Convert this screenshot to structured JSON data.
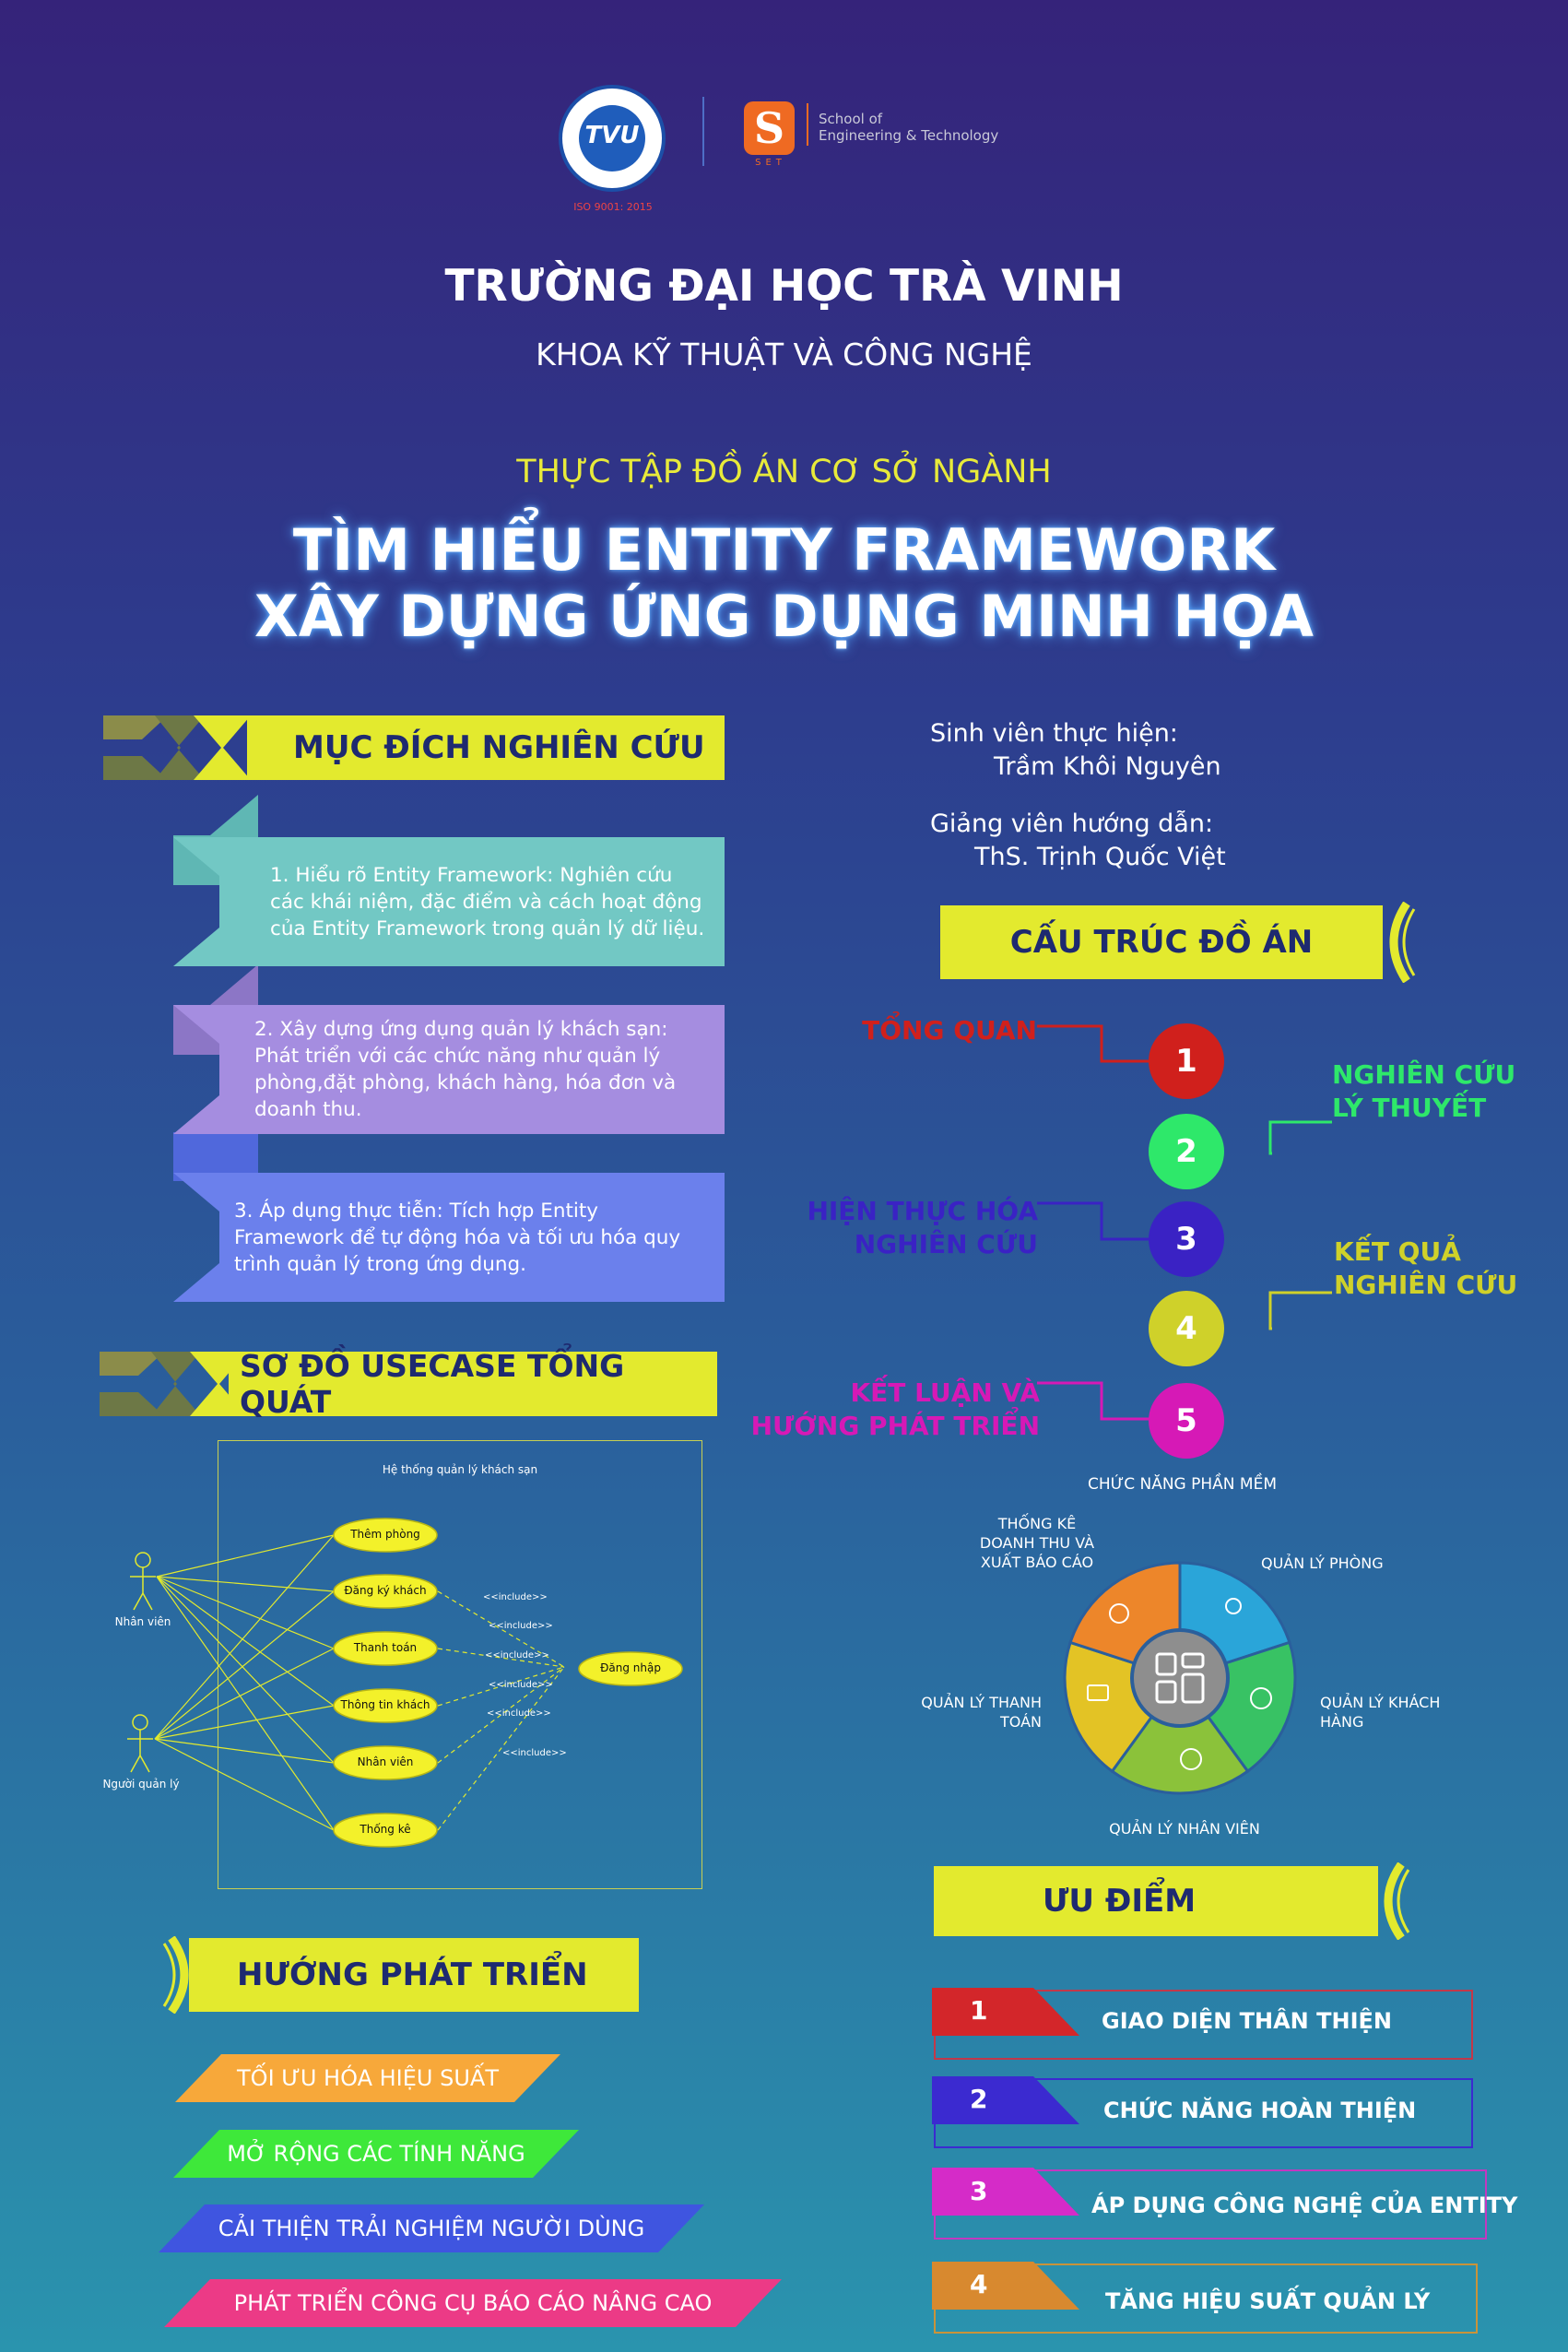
{
  "header": {
    "logo_tvu": "TVU",
    "iso": "ISO 9001: 2015",
    "set_logo": "S",
    "set_letters": "SET",
    "school_line1": "School of",
    "school_line2": "Engineering & Technology",
    "university": "TRƯỜNG ĐẠI HỌC TRÀ VINH",
    "faculty": "KHOA KỸ THUẬT VÀ CÔNG NGHỆ",
    "course": "THỰC TẬP ĐỒ ÁN CƠ SỞ NGÀNH",
    "title_line1": "TÌM HIỂU ENTITY FRAMEWORK",
    "title_line2": "XÂY DỰNG ỨNG DỤNG MINH HỌA"
  },
  "purpose": {
    "heading": "MỤC ĐÍCH NGHIÊN CỨU",
    "items": [
      "1. Hiểu rõ Entity Framework: Nghiên cứu các khái niệm, đặc điểm và cách hoạt động của Entity Framework trong quản lý dữ liệu.",
      "2. Xây dựng ứng dụng quản lý khách sạn: Phát triển với các chức năng như quản lý phòng,đặt phòng, khách hàng, hóa đơn và doanh thu.",
      "3. Áp dụng thực tiễn: Tích hợp Entity Framework để tự động hóa và tối ưu hóa quy trình quản lý trong ứng dụng."
    ]
  },
  "info": {
    "student_label": "Sinh viên thực hiện:",
    "student_name": "Trầm Khôi Nguyên",
    "advisor_label": "Giảng viên hướng dẫn:",
    "advisor_name": "ThS. Trịnh Quốc Việt"
  },
  "structure": {
    "heading": "CẤU TRÚC ĐỒ ÁN",
    "items": [
      {
        "num": "1",
        "label": "TỔNG QUAN",
        "color": "#d0201c"
      },
      {
        "num": "2",
        "label_line1": "NGHIÊN CỨU",
        "label_line2": "LÝ THUYẾT",
        "color": "#2ee86a"
      },
      {
        "num": "3",
        "label_line1": "HIỆN THỰC HÓA",
        "label_line2": "NGHIÊN CỨU",
        "color": "#3a22c4"
      },
      {
        "num": "4",
        "label_line1": "KẾT QUẢ",
        "label_line2": "NGHIÊN CỨU",
        "color": "#cfd12a"
      },
      {
        "num": "5",
        "label_line1": "KẾT LUẬN VÀ",
        "label_line2": "HƯỚNG PHÁT TRIỂN",
        "color": "#d619b6"
      }
    ]
  },
  "usecase": {
    "heading": "SƠ ĐỒ USECASE TỔNG QUÁT",
    "system": "Hệ thống quản lý khách sạn",
    "actors": [
      "Nhân viên",
      "Người quản lý"
    ],
    "cases": [
      "Thêm phòng",
      "Đăng ký khách",
      "Thanh toán",
      "Thông tin khách",
      "Nhân viên",
      "Thống kê"
    ],
    "login": "Đăng nhập",
    "include": "<<include>>"
  },
  "functions": {
    "title": "CHỨC NĂNG PHẦN MỀM",
    "stats_line1": "THỐNG KÊ",
    "stats_line2": "DOANH THU VÀ",
    "stats_line3": "XUẤT BÁO CÁO",
    "rooms": "QUẢN LÝ PHÒNG",
    "payment_line1": "QUẢN LÝ THANH",
    "payment_line2": "TOÁN",
    "customers_line1": "QUẢN LÝ KHÁCH",
    "customers_line2": "HÀNG",
    "staff": "QUẢN LÝ NHÂN VIÊN"
  },
  "advantages": {
    "heading": "ƯU ĐIỂM",
    "items": [
      {
        "num": "1",
        "text": "GIAO DIỆN THÂN THIỆN",
        "color": "#d3262a",
        "border": "#c2384a"
      },
      {
        "num": "2",
        "text": "CHỨC NĂNG HOÀN THIỆN",
        "color": "#3b2ad0",
        "border": "#3b2ad0"
      },
      {
        "num": "3",
        "text": "ÁP DỤNG CÔNG NGHỆ CỦA ENTITY",
        "color": "#d52bc8",
        "border": "#c238c0"
      },
      {
        "num": "4",
        "text": "TĂNG HIỆU SUẤT QUẢN LÝ",
        "color": "#d8892f",
        "border": "#c9933a"
      }
    ]
  },
  "development": {
    "heading": "HƯỚNG PHÁT TRIỂN",
    "items": [
      {
        "text": "TỐI ƯU HÓA HIỆU SUẤT",
        "color": "#f7a83a"
      },
      {
        "text": "MỞ RỘNG CÁC TÍNH NĂNG",
        "color": "#3ee83a"
      },
      {
        "text": "CẢI THIỆN TRẢI NGHIỆM NGƯỜI DÙNG",
        "color": "#3f55e0"
      },
      {
        "text": "PHÁT TRIỂN CÔNG CỤ BÁO CÁO NÂNG CAO",
        "color": "#ec3a86"
      }
    ]
  }
}
